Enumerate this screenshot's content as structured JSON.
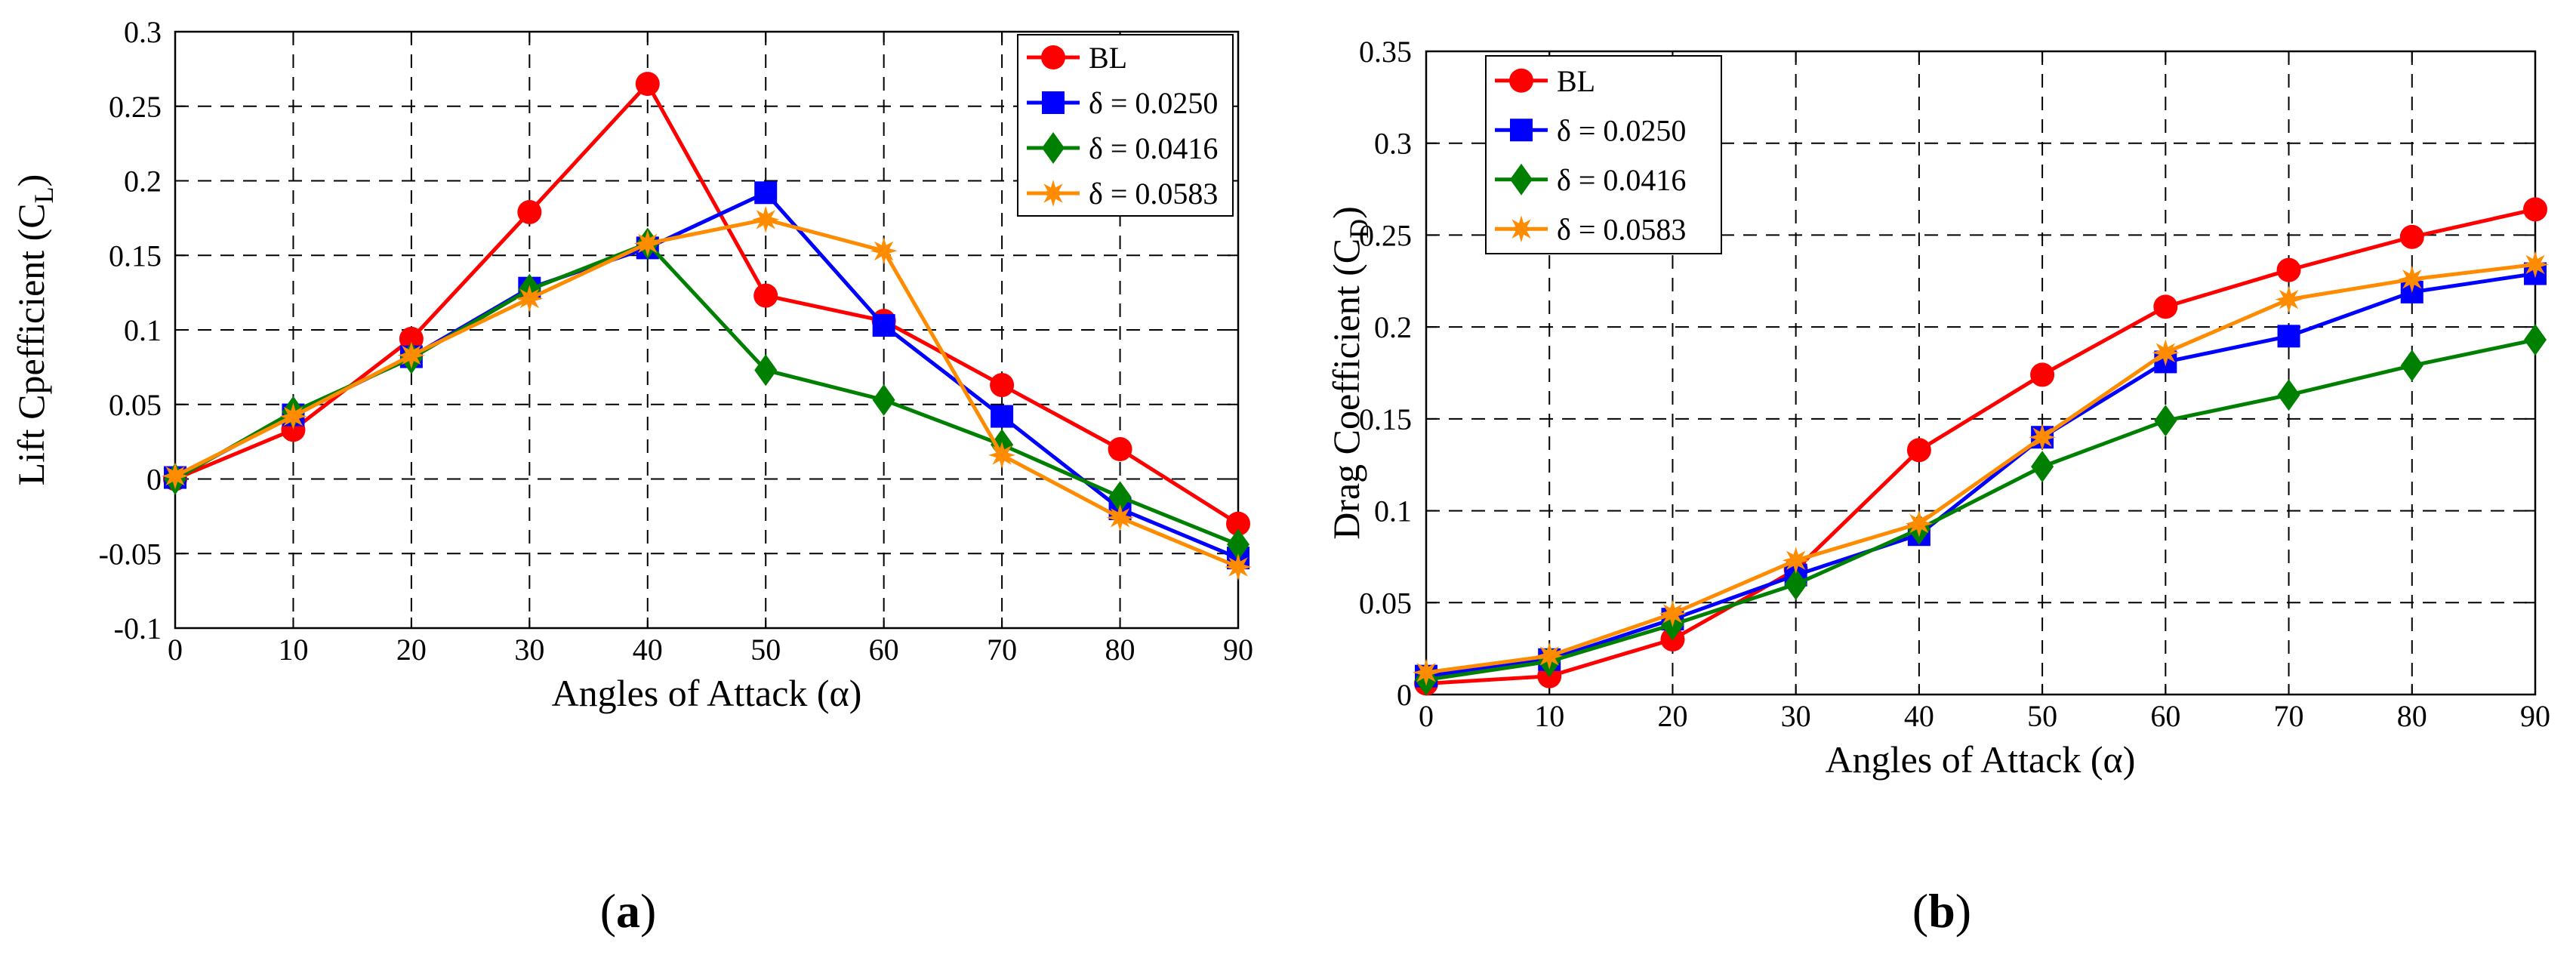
{
  "chart_data": [
    {
      "type": "line",
      "id": "a",
      "panel_label": "a",
      "xlabel": "Angles of Attack (α)",
      "ylabel": "Lift Cpefficient (C",
      "ylabel_sub": "L",
      "ylabel_close": ")",
      "x": [
        0,
        10,
        20,
        30,
        40,
        50,
        60,
        70,
        80,
        90
      ],
      "xlim": [
        0,
        90
      ],
      "ylim": [
        -0.1,
        0.3
      ],
      "xticks": [
        0,
        10,
        20,
        30,
        40,
        50,
        60,
        70,
        80,
        90
      ],
      "xtick_labels": [
        "0",
        "10",
        "20",
        "30",
        "40",
        "50",
        "60",
        "70",
        "80",
        "90"
      ],
      "yticks": [
        -0.1,
        -0.05,
        0,
        0.05,
        0.1,
        0.15,
        0.2,
        0.25,
        0.3
      ],
      "ytick_labels": [
        "-0.1",
        "-0.05",
        "0",
        "0.05",
        "0.1",
        "0.15",
        "0.2",
        "0.25",
        "0.3"
      ],
      "grid": true,
      "legend_position": "top-right",
      "series": [
        {
          "name": "BL",
          "color": "#ff0000",
          "marker": "circle",
          "values": [
            0.0,
            0.033,
            0.094,
            0.179,
            0.265,
            0.123,
            0.106,
            0.063,
            0.02,
            -0.03
          ]
        },
        {
          "name": "δ = 0.0250",
          "color": "#0000ff",
          "marker": "square",
          "values": [
            0.001,
            0.043,
            0.082,
            0.128,
            0.155,
            0.192,
            0.103,
            0.042,
            -0.02,
            -0.053
          ]
        },
        {
          "name": "δ = 0.0416",
          "color": "#008000",
          "marker": "diamond",
          "values": [
            0.0,
            0.045,
            0.081,
            0.127,
            0.158,
            0.073,
            0.053,
            0.023,
            -0.012,
            -0.044
          ]
        },
        {
          "name": "δ = 0.0583",
          "color": "#ff8c00",
          "marker": "star",
          "values": [
            0.002,
            0.042,
            0.083,
            0.121,
            0.158,
            0.174,
            0.153,
            0.016,
            -0.026,
            -0.059
          ]
        }
      ]
    },
    {
      "type": "line",
      "id": "b",
      "panel_label": "b",
      "xlabel": "Angles of Attack (α)",
      "ylabel": "Drag Coefficient (C",
      "ylabel_sub": "D",
      "ylabel_close": ")",
      "x": [
        0,
        10,
        20,
        30,
        40,
        50,
        60,
        70,
        80,
        90
      ],
      "xlim": [
        0,
        90
      ],
      "ylim": [
        0,
        0.35
      ],
      "xticks": [
        0,
        10,
        20,
        30,
        40,
        50,
        60,
        70,
        80,
        90
      ],
      "xtick_labels": [
        "0",
        "10",
        "20",
        "30",
        "40",
        "50",
        "60",
        "70",
        "80",
        "90"
      ],
      "yticks": [
        0,
        0.05,
        0.1,
        0.15,
        0.2,
        0.25,
        0.3,
        0.35
      ],
      "ytick_labels": [
        "0",
        "0.05",
        "0.1",
        "0.15",
        "0.2",
        "0.25",
        "0.3",
        "0.35"
      ],
      "grid": true,
      "legend_position": "top-left",
      "series": [
        {
          "name": "BL",
          "color": "#ff0000",
          "marker": "circle",
          "values": [
            0.006,
            0.01,
            0.03,
            0.068,
            0.133,
            0.174,
            0.211,
            0.231,
            0.249,
            0.264
          ]
        },
        {
          "name": "δ = 0.0250",
          "color": "#0000ff",
          "marker": "square",
          "values": [
            0.01,
            0.019,
            0.041,
            0.065,
            0.087,
            0.14,
            0.181,
            0.195,
            0.219,
            0.229
          ]
        },
        {
          "name": "δ = 0.0416",
          "color": "#008000",
          "marker": "diamond",
          "values": [
            0.008,
            0.018,
            0.038,
            0.06,
            0.09,
            0.124,
            0.149,
            0.163,
            0.179,
            0.193
          ]
        },
        {
          "name": "δ = 0.0583",
          "color": "#ff8c00",
          "marker": "star",
          "values": [
            0.012,
            0.021,
            0.044,
            0.073,
            0.093,
            0.14,
            0.186,
            0.215,
            0.226,
            0.234
          ]
        }
      ]
    }
  ]
}
